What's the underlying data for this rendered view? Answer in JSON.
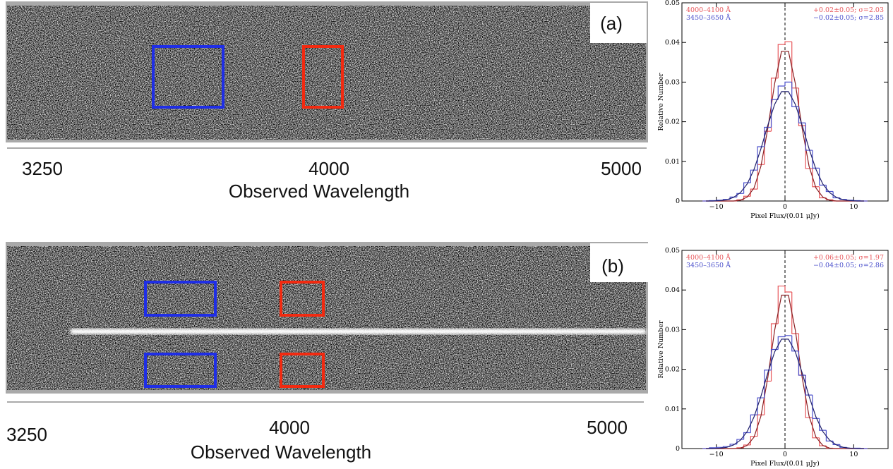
{
  "panels": [
    {
      "label": "(a)",
      "axis_ticks": [
        3250,
        4000,
        5000
      ],
      "xlabel": "Observed Wavelength"
    },
    {
      "label": "(b)",
      "axis_ticks": [
        3250,
        4000,
        5000
      ],
      "xlabel": "Observed Wavelength"
    }
  ],
  "chart_data": [
    {
      "type": "histogram",
      "ylabel": "Relative Number",
      "xlabel": "Pixel Flux/(0.01 μJy)",
      "xlim": [
        -15,
        15
      ],
      "xticks": [
        {
          "value": -10,
          "label": "−10"
        },
        0,
        10
      ],
      "ylim": [
        0,
        0.05
      ],
      "yticks": [
        0,
        0.01,
        0.02,
        0.03,
        0.04,
        0.05
      ],
      "vline": 0,
      "bins": [
        -12,
        -11,
        -10,
        -9,
        -8,
        -7,
        -6,
        -5,
        -4,
        -3,
        -2,
        -1,
        0,
        1,
        2,
        3,
        4,
        5,
        6,
        7,
        8,
        9,
        10,
        11,
        12
      ],
      "fit_x": [
        -11.5,
        -10.5,
        -9.5,
        -8.5,
        -7.5,
        -6.5,
        -5.5,
        -4.5,
        -3.5,
        -2.5,
        -1.5,
        -0.5,
        0.5,
        1.5,
        2.5,
        3.5,
        4.5,
        5.5,
        6.5,
        7.5,
        8.5,
        9.5,
        10.5,
        11.5
      ],
      "series": [
        {
          "name": "4000–4100 Å",
          "stats": "+0.02±0.05; σ=2.03",
          "color": "#e8585c",
          "fit_color": "#8a1f22",
          "values": [
            0,
            0,
            0,
            0,
            0,
            0.0003,
            0.0012,
            0.003,
            0.0092,
            0.0176,
            0.031,
            0.0395,
            0.0402,
            0.0285,
            0.019,
            0.0082,
            0.0036,
            0.0008,
            0.0003,
            0,
            0,
            0,
            0,
            0
          ],
          "fit": [
            0,
            0,
            0,
            0,
            0,
            0.0002,
            0.001,
            0.0033,
            0.0088,
            0.0183,
            0.0297,
            0.0378,
            0.0378,
            0.0297,
            0.0183,
            0.0088,
            0.0033,
            0.001,
            0.0002,
            0,
            0,
            0,
            0,
            0
          ]
        },
        {
          "name": "3450–3650 Å",
          "stats": "−0.02±0.05; σ=2.85",
          "color": "#4d52cc",
          "fit_color": "#1e1e6a",
          "values": [
            0,
            0.0001,
            0.0002,
            0.0004,
            0.001,
            0.0019,
            0.0046,
            0.0078,
            0.0137,
            0.0186,
            0.0256,
            0.029,
            0.03,
            0.0238,
            0.0197,
            0.0128,
            0.0083,
            0.004,
            0.0024,
            0.0008,
            0.0004,
            0.0002,
            0.0001,
            0
          ],
          "fit": [
            0,
            0,
            0.0001,
            0.0003,
            0.0009,
            0.0021,
            0.0043,
            0.008,
            0.0132,
            0.0191,
            0.0244,
            0.0276,
            0.0276,
            0.0244,
            0.0191,
            0.0132,
            0.008,
            0.0043,
            0.0021,
            0.0009,
            0.0003,
            0.0001,
            0,
            0
          ]
        }
      ]
    },
    {
      "type": "histogram",
      "ylabel": "Relative Number",
      "xlabel": "Pixel Flux/(0.01 μJy)",
      "xlim": [
        -15,
        15
      ],
      "xticks": [
        {
          "value": -10,
          "label": "−10"
        },
        0,
        10
      ],
      "ylim": [
        0,
        0.05
      ],
      "yticks": [
        0,
        0.01,
        0.02,
        0.03,
        0.04,
        0.05
      ],
      "vline": 0,
      "bins": [
        -12,
        -11,
        -10,
        -9,
        -8,
        -7,
        -6,
        -5,
        -4,
        -3,
        -2,
        -1,
        0,
        1,
        2,
        3,
        4,
        5,
        6,
        7,
        8,
        9,
        10,
        11,
        12
      ],
      "fit_x": [
        -11.5,
        -10.5,
        -9.5,
        -8.5,
        -7.5,
        -6.5,
        -5.5,
        -4.5,
        -3.5,
        -2.5,
        -1.5,
        -0.5,
        0.5,
        1.5,
        2.5,
        3.5,
        4.5,
        5.5,
        6.5,
        7.5,
        8.5,
        9.5,
        10.5,
        11.5
      ],
      "series": [
        {
          "name": "4000–4100 Å",
          "stats": "+0.06±0.05; σ=1.97",
          "color": "#e8585c",
          "fit_color": "#8a1f22",
          "values": [
            0,
            0,
            0,
            0,
            0,
            0.0002,
            0.0009,
            0.0031,
            0.0085,
            0.017,
            0.0315,
            0.041,
            0.0395,
            0.029,
            0.0185,
            0.0078,
            0.0027,
            0.0007,
            0.0001,
            0,
            0,
            0,
            0,
            0
          ],
          "fit": [
            0,
            0,
            0,
            0,
            0,
            0.0001,
            0.0008,
            0.0029,
            0.0082,
            0.0179,
            0.0299,
            0.0387,
            0.0387,
            0.0299,
            0.0179,
            0.0082,
            0.0029,
            0.0008,
            0.0001,
            0,
            0,
            0,
            0,
            0
          ]
        },
        {
          "name": "3450–3650 Å",
          "stats": "−0.04±0.05; σ=2.86",
          "color": "#4d52cc",
          "fit_color": "#1e1e6a",
          "values": [
            0,
            0.0002,
            0.0003,
            0.0005,
            0.0011,
            0.0023,
            0.004,
            0.0085,
            0.0128,
            0.0198,
            0.025,
            0.0282,
            0.0285,
            0.0246,
            0.0185,
            0.0135,
            0.0076,
            0.0046,
            0.0019,
            0.001,
            0.0003,
            0.0001,
            0.0001,
            0
          ],
          "fit": [
            0,
            0,
            0.0001,
            0.0003,
            0.0009,
            0.0021,
            0.0043,
            0.008,
            0.0132,
            0.0191,
            0.0244,
            0.0276,
            0.0276,
            0.0244,
            0.0191,
            0.0132,
            0.008,
            0.0043,
            0.0021,
            0.0009,
            0.0003,
            0.0001,
            0,
            0
          ]
        }
      ]
    }
  ]
}
